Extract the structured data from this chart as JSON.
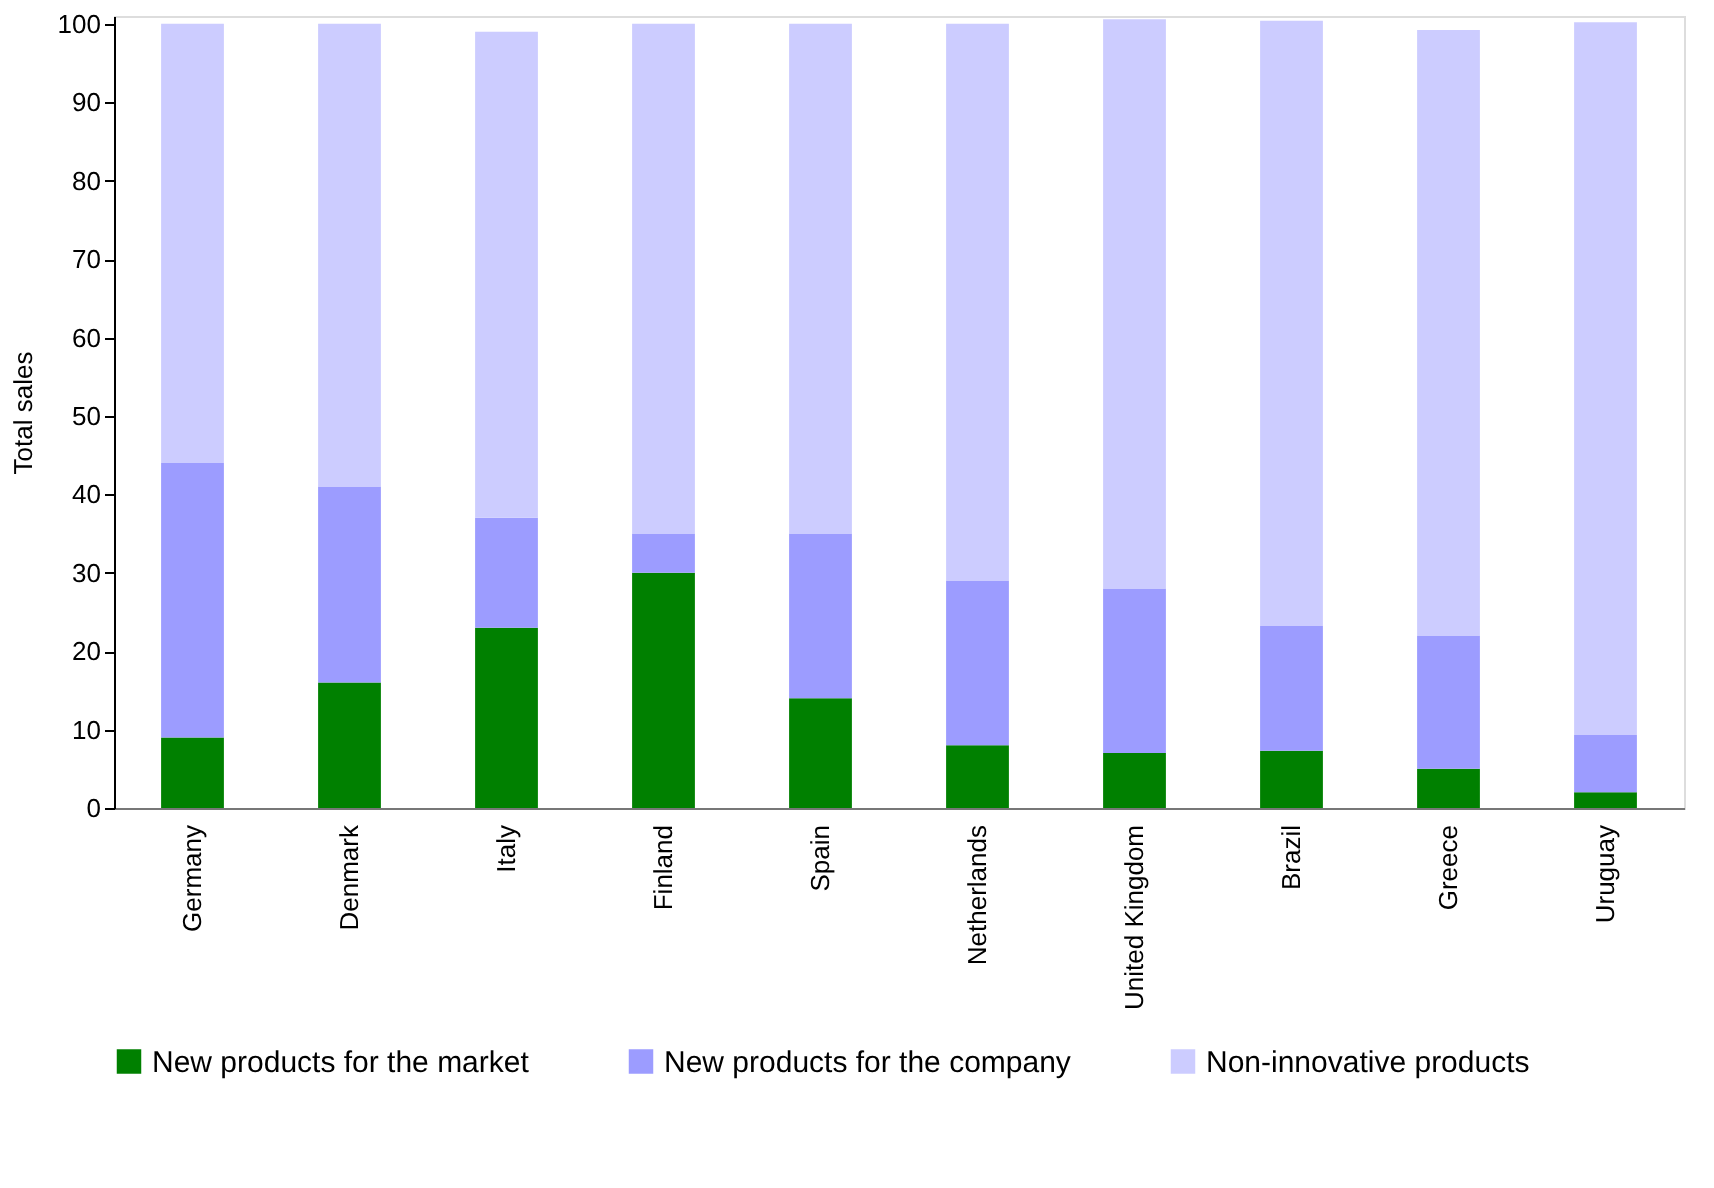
{
  "chart_data": {
    "type": "bar",
    "stacked": true,
    "ylabel": "Total sales",
    "categories": [
      "Germany",
      "Denmark",
      "Italy",
      "Finland",
      "Spain",
      "Netherlands",
      "United Kingdom",
      "Brazil",
      "Greece",
      "Uruguay"
    ],
    "series": [
      {
        "name": "New products for the market",
        "color": "#008000",
        "values": [
          9,
          16,
          23,
          30,
          14,
          8,
          7,
          7.3,
          5,
          2
        ]
      },
      {
        "name": "New products for the company",
        "color": "#9c9cff",
        "values": [
          35,
          25,
          14,
          5,
          21,
          21,
          21,
          15.9,
          17,
          7.3
        ]
      },
      {
        "name": "Non-innovative products",
        "color": "#ccccff",
        "values": [
          56,
          59,
          62,
          65,
          65,
          71,
          72.6,
          77.2,
          77.2,
          90.9
        ]
      }
    ],
    "ylim": [
      0,
      101
    ],
    "yticks": [
      0,
      10,
      20,
      30,
      40,
      50,
      60,
      70,
      80,
      90,
      100
    ],
    "grid": false,
    "legend": "bottom"
  }
}
